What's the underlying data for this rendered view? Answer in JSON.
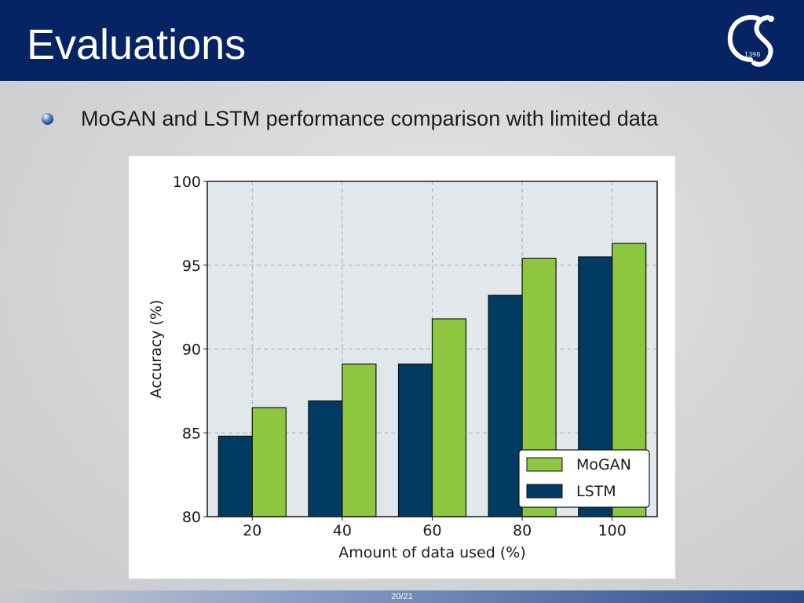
{
  "slide": {
    "title": "Evaluations",
    "bullet_text": "MoGAN and LSTM performance comparison with limited data",
    "page_number": "20/21",
    "logo_text": "1398",
    "logo_icon": "cs-logo-icon",
    "bullet_icon": "sphere-bullet-icon"
  },
  "colors": {
    "header": "#062464",
    "mogan": "#8dc63f",
    "lstm": "#003b64",
    "plot_bg": "#e2e7eb",
    "grid": "#a8acb0"
  },
  "chart_data": {
    "type": "bar",
    "title": "",
    "xlabel": "Amount of data used (%)",
    "ylabel": "Accuracy (%)",
    "categories": [
      "20",
      "40",
      "60",
      "80",
      "100"
    ],
    "ylim": [
      80,
      100
    ],
    "yticks": [
      80,
      85,
      90,
      95,
      100
    ],
    "series": [
      {
        "name": "LSTM",
        "values": [
          84.8,
          86.9,
          89.1,
          93.2,
          95.5
        ],
        "color": "#003b64"
      },
      {
        "name": "MoGAN",
        "values": [
          86.5,
          89.1,
          91.8,
          95.4,
          96.3
        ],
        "color": "#8dc63f"
      }
    ],
    "legend": {
      "position": "lower-right",
      "entries": [
        "MoGAN",
        "LSTM"
      ]
    },
    "grid": true
  }
}
